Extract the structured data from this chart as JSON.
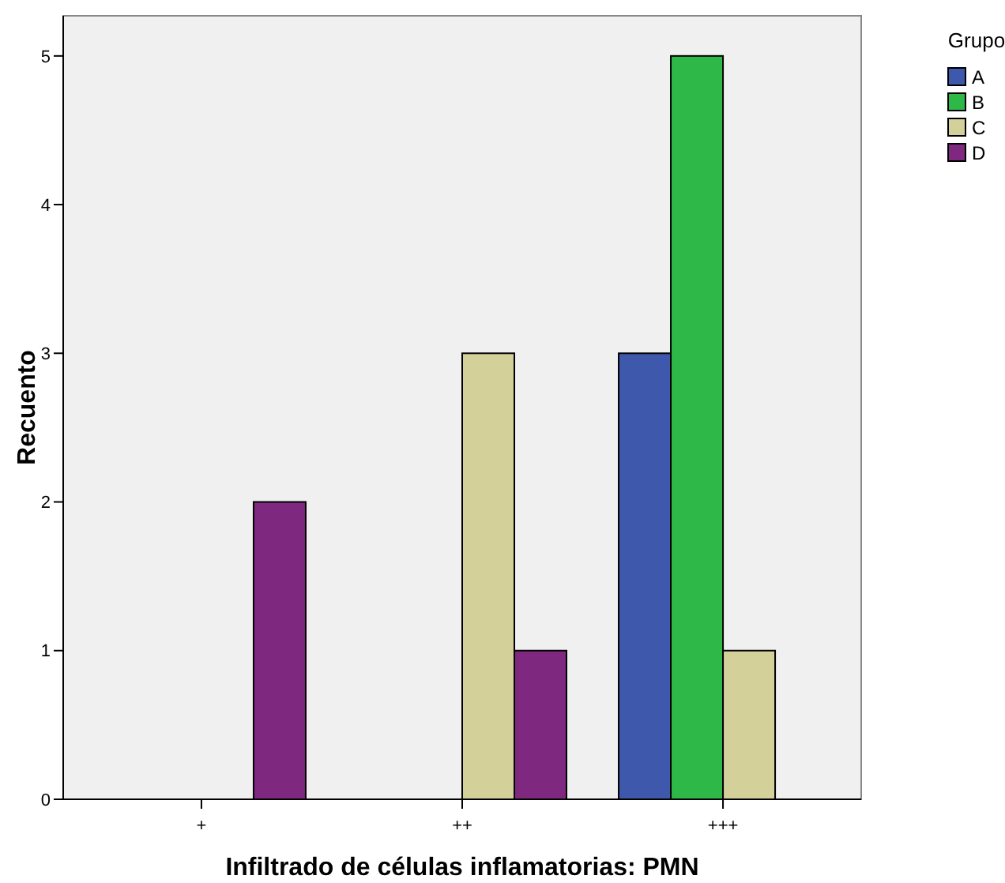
{
  "chart_data": {
    "type": "bar",
    "xlabel": "Infiltrado de células inflamatorias: PMN",
    "ylabel": "Recuento",
    "legend_title": "Grupo",
    "legend": "top right",
    "categories": [
      "+",
      "++",
      "+++"
    ],
    "ylim": [
      0,
      5.27
    ],
    "yticks": [
      0,
      1,
      2,
      3,
      4,
      5
    ],
    "grid": false,
    "series": [
      {
        "name": "A",
        "color": "#3e58ac",
        "values": [
          0,
          0,
          3
        ]
      },
      {
        "name": "B",
        "color": "#2eb848",
        "values": [
          0,
          0,
          5
        ]
      },
      {
        "name": "C",
        "color": "#d4d09a",
        "values": [
          0,
          3,
          1
        ]
      },
      {
        "name": "D",
        "color": "#7e2880",
        "values": [
          2,
          1,
          0
        ]
      }
    ]
  }
}
